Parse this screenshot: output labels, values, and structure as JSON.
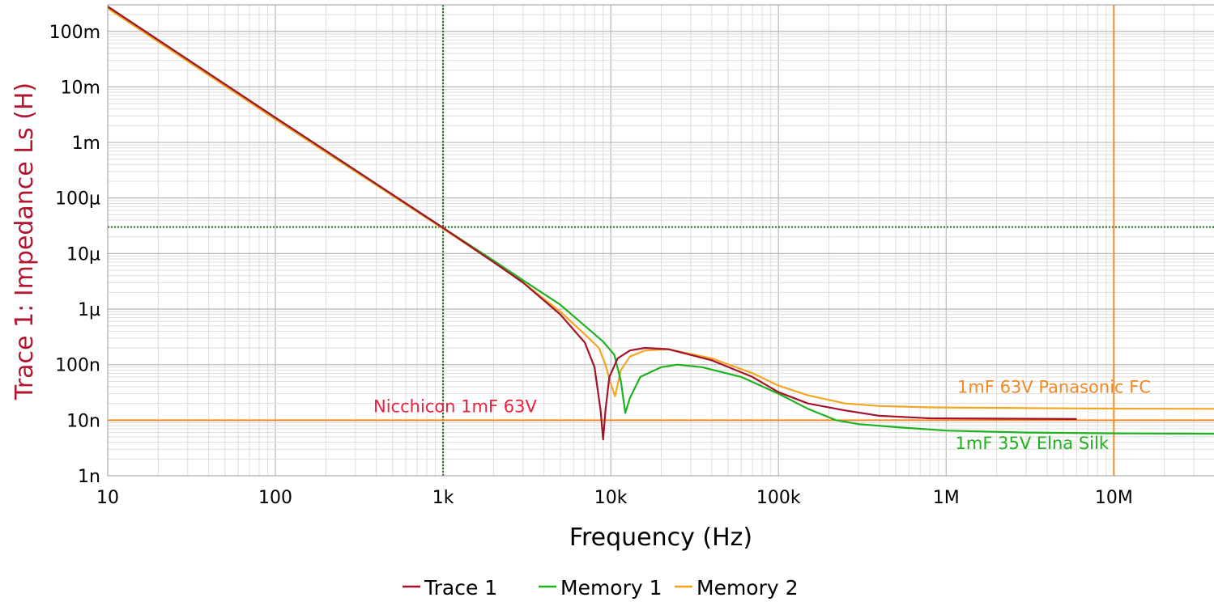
{
  "chart_data": {
    "type": "line",
    "title": "",
    "xlabel": "Frequency (Hz)",
    "ylabel": "Trace 1: Impedance Ls (H)",
    "x_scale": "log",
    "y_scale": "log",
    "xlim": [
      10,
      40000000
    ],
    "ylim": [
      1e-09,
      0.3
    ],
    "grid": true,
    "legend_position": "bottom",
    "x_ticks": [
      {
        "value": 10,
        "label": "10"
      },
      {
        "value": 100,
        "label": "100"
      },
      {
        "value": 1000,
        "label": "1k"
      },
      {
        "value": 10000,
        "label": "10k"
      },
      {
        "value": 100000,
        "label": "100k"
      },
      {
        "value": 1000000,
        "label": "1M"
      },
      {
        "value": 10000000,
        "label": "10M"
      }
    ],
    "y_ticks": [
      {
        "value": 1e-09,
        "label": "1n"
      },
      {
        "value": 1e-08,
        "label": "10n"
      },
      {
        "value": 1e-07,
        "label": "100n"
      },
      {
        "value": 1e-06,
        "label": "1µ"
      },
      {
        "value": 1e-05,
        "label": "10µ"
      },
      {
        "value": 0.0001,
        "label": "100µ"
      },
      {
        "value": 0.001,
        "label": "1m"
      },
      {
        "value": 0.01,
        "label": "10m"
      },
      {
        "value": 0.1,
        "label": "100m"
      }
    ],
    "cursors": [
      {
        "orientation": "vertical",
        "value": 1000,
        "color": "#107010",
        "style": "dotted"
      },
      {
        "orientation": "horizontal",
        "value": 3e-05,
        "color": "#107010",
        "style": "dotted"
      },
      {
        "orientation": "vertical",
        "value": 10000000,
        "color": "#f08a24",
        "style": "solid"
      },
      {
        "orientation": "horizontal",
        "value": 1e-08,
        "color": "#f08a24",
        "style": "solid"
      }
    ],
    "series": [
      {
        "name": "Trace 1",
        "color": "#a3132b",
        "points": [
          [
            10,
            0.28
          ],
          [
            100,
            0.0028
          ],
          [
            1000,
            2.9e-05
          ],
          [
            2000,
            7e-06
          ],
          [
            3000,
            3e-06
          ],
          [
            5000,
            8e-07
          ],
          [
            7000,
            2.5e-07
          ],
          [
            8000,
            9e-08
          ],
          [
            8700,
            1.5e-08
          ],
          [
            9000,
            4.5e-09
          ],
          [
            9300,
            1.5e-08
          ],
          [
            9800,
            6e-08
          ],
          [
            11000,
            1.3e-07
          ],
          [
            13000,
            1.8e-07
          ],
          [
            16000,
            2e-07
          ],
          [
            22000,
            1.9e-07
          ],
          [
            40000,
            1.2e-07
          ],
          [
            70000,
            6e-08
          ],
          [
            100000,
            3.2e-08
          ],
          [
            150000,
            2e-08
          ],
          [
            250000,
            1.5e-08
          ],
          [
            400000,
            1.2e-08
          ],
          [
            800000,
            1.08e-08
          ],
          [
            6000000,
            1.05e-08
          ]
        ]
      },
      {
        "name": "Memory 1",
        "color": "#1fb21f",
        "points": [
          [
            10,
            0.28
          ],
          [
            100,
            0.0028
          ],
          [
            1000,
            2.9e-05
          ],
          [
            2000,
            7.5e-06
          ],
          [
            3000,
            3.3e-06
          ],
          [
            5000,
            1.2e-06
          ],
          [
            7000,
            5e-07
          ],
          [
            9000,
            2.6e-07
          ],
          [
            10500,
            1.5e-07
          ],
          [
            11500,
            5e-08
          ],
          [
            12200,
            1.35e-08
          ],
          [
            13000,
            2.5e-08
          ],
          [
            15000,
            6e-08
          ],
          [
            20000,
            9e-08
          ],
          [
            25000,
            1e-07
          ],
          [
            35000,
            9e-08
          ],
          [
            60000,
            6e-08
          ],
          [
            100000,
            3e-08
          ],
          [
            150000,
            1.6e-08
          ],
          [
            220000,
            1e-08
          ],
          [
            300000,
            8.5e-09
          ],
          [
            500000,
            7.5e-09
          ],
          [
            1000000,
            6.5e-09
          ],
          [
            3000000,
            6e-09
          ],
          [
            10000000,
            5.8e-09
          ],
          [
            40000000,
            5.7e-09
          ]
        ]
      },
      {
        "name": "Memory 2",
        "color": "#f2a622",
        "points": [
          [
            10,
            0.26
          ],
          [
            100,
            0.0026
          ],
          [
            1000,
            2.8e-05
          ],
          [
            2000,
            7e-06
          ],
          [
            3000,
            3e-06
          ],
          [
            5000,
            9e-07
          ],
          [
            7000,
            3.5e-07
          ],
          [
            8500,
            2e-07
          ],
          [
            9300,
            1e-07
          ],
          [
            10000,
            4.5e-08
          ],
          [
            10600,
            2.7e-08
          ],
          [
            11500,
            8e-08
          ],
          [
            13000,
            1.4e-07
          ],
          [
            16000,
            1.8e-07
          ],
          [
            22000,
            1.9e-07
          ],
          [
            40000,
            1.3e-07
          ],
          [
            70000,
            7e-08
          ],
          [
            100000,
            4.2e-08
          ],
          [
            150000,
            2.8e-08
          ],
          [
            250000,
            2e-08
          ],
          [
            400000,
            1.8e-08
          ],
          [
            800000,
            1.7e-08
          ],
          [
            3000000,
            1.65e-08
          ],
          [
            10000000,
            1.62e-08
          ],
          [
            40000000,
            1.6e-08
          ]
        ]
      }
    ],
    "annotations": [
      {
        "text": "Nicchicon 1mF 63V",
        "color": "#e8213f",
        "x": 1500,
        "y": 1.4e-08
      },
      {
        "text": "1mF 63V Panasonic FC",
        "color": "#f08a24",
        "x": 9000000,
        "y": 3.1e-08
      },
      {
        "text": "1mF 35V Elna Silk",
        "color": "#1fb21f",
        "x": 7000000,
        "y": 3e-09
      }
    ]
  }
}
